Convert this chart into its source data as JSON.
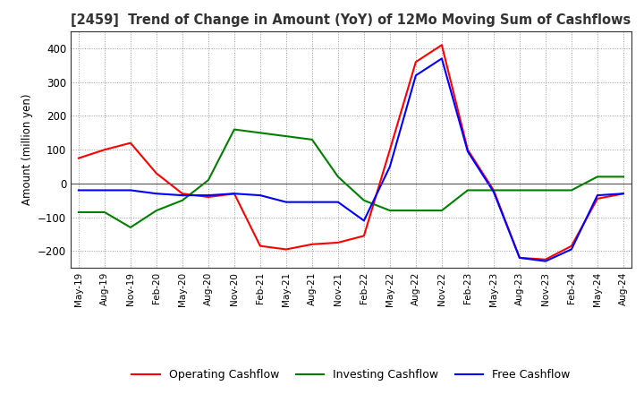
{
  "title": "[2459]  Trend of Change in Amount (YoY) of 12Mo Moving Sum of Cashflows",
  "ylabel": "Amount (million yen)",
  "ylim": [
    -250,
    450
  ],
  "yticks": [
    -200,
    -100,
    0,
    100,
    200,
    300,
    400
  ],
  "x_labels": [
    "May-19",
    "Aug-19",
    "Nov-19",
    "Feb-20",
    "May-20",
    "Aug-20",
    "Nov-20",
    "Feb-21",
    "May-21",
    "Aug-21",
    "Nov-21",
    "Feb-22",
    "May-22",
    "Aug-22",
    "Nov-22",
    "Feb-23",
    "May-23",
    "Aug-23",
    "Nov-23",
    "Feb-24",
    "May-24",
    "Aug-24"
  ],
  "operating": [
    75,
    100,
    120,
    30,
    -30,
    -40,
    -30,
    -185,
    -195,
    -180,
    -175,
    -155,
    100,
    360,
    410,
    100,
    -20,
    -220,
    -225,
    -185,
    -45,
    -30
  ],
  "investing": [
    -85,
    -85,
    -130,
    -80,
    -50,
    10,
    160,
    150,
    140,
    130,
    20,
    -50,
    -80,
    -80,
    -80,
    -20,
    -20,
    -20,
    -20,
    -20,
    20,
    20
  ],
  "free_cashflow": [
    -20,
    -20,
    -20,
    -30,
    -35,
    -35,
    -30,
    -35,
    -55,
    -55,
    -55,
    -110,
    50,
    320,
    370,
    95,
    -25,
    -220,
    -230,
    -195,
    -35,
    -30
  ],
  "operating_color": "#ff0000",
  "investing_color": "#008000",
  "free_color": "#0000ff",
  "grid_color": "#999999",
  "title_color": "#333333",
  "border_color": "#333333"
}
